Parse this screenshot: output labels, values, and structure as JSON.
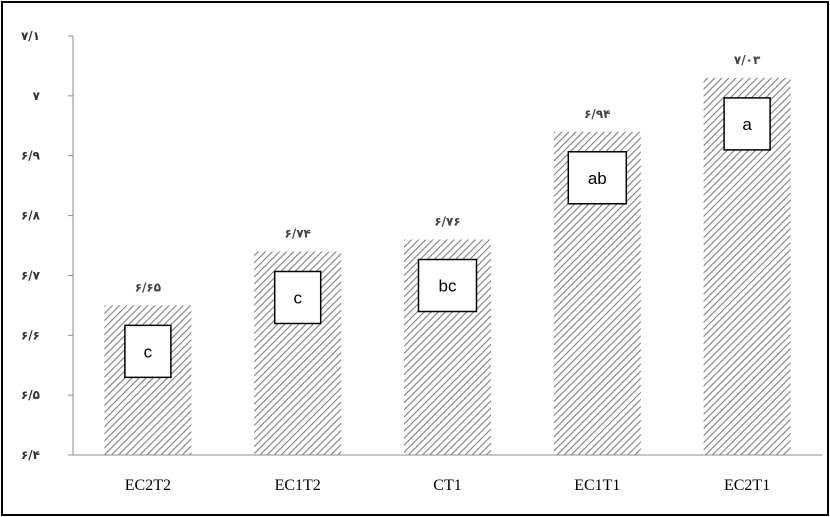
{
  "chart_data": {
    "type": "bar",
    "categories": [
      "EC2T2",
      "EC1T2",
      "CT1",
      "EC1T1",
      "EC2T1"
    ],
    "values": [
      6.65,
      6.74,
      6.76,
      6.94,
      7.03
    ],
    "value_labels": [
      "۶/۶۵",
      "۶/۷۴",
      "۶/۷۶",
      "۶/۹۴",
      "۷/۰۳"
    ],
    "significance_letters": [
      "c",
      "c",
      "bc",
      "ab",
      "a"
    ],
    "ylim": [
      6.4,
      7.1
    ],
    "y_ticks": [
      6.4,
      6.5,
      6.6,
      6.7,
      6.8,
      6.9,
      7.0,
      7.1
    ],
    "y_tick_labels": [
      "۶/۴",
      "۶/۵",
      "۶/۶",
      "۶/۷",
      "۶/۸",
      "۶/۹",
      "۷",
      "۷/۱"
    ],
    "grid": false,
    "bar_pattern": "diagonal-hatch",
    "colors": {
      "bar_hatch": "#7f7f7f",
      "axis": "#8c8c8c",
      "frame": "#000000"
    },
    "title": "",
    "xlabel": "",
    "ylabel": ""
  }
}
